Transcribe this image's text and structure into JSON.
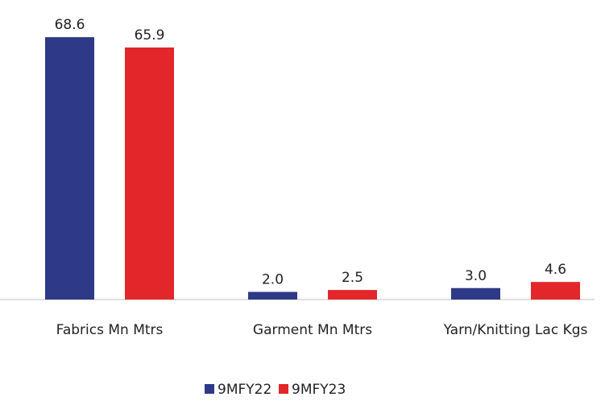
{
  "chart_data": {
    "type": "bar",
    "categories": [
      "Fabrics Mn Mtrs",
      "Garment Mn Mtrs",
      "Yarn/Knitting Lac Kgs"
    ],
    "series": [
      {
        "name": "9MFY22",
        "color": "#2e3a87",
        "values": [
          68.6,
          2.0,
          3.0
        ],
        "value_labels": [
          "68.6",
          "2.0",
          "3.0"
        ]
      },
      {
        "name": "9MFY23",
        "color": "#e3262a",
        "values": [
          65.9,
          2.5,
          4.6
        ],
        "value_labels": [
          "65.9",
          "2.5",
          "4.6"
        ]
      }
    ],
    "legend": "bottom"
  }
}
